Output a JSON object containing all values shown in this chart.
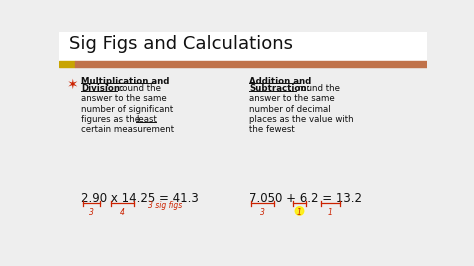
{
  "title": "Sig Figs and Calculations",
  "bg_color": "#eeeeee",
  "title_bar_color": "#c0724a",
  "left_bar_color": "#c8a400",
  "title_color": "#111111",
  "title_fontsize": 13,
  "body_fontsize": 6.2,
  "eq_fontsize": 8.5,
  "ann_fontsize": 5.5,
  "eq_left": "2.90 x 14.25 = 41.3",
  "eq_right": "7.050 + 6.2 = 13.2",
  "annotation_color": "#cc2200",
  "yellow_color": "#ffee00",
  "text_color": "#111111"
}
